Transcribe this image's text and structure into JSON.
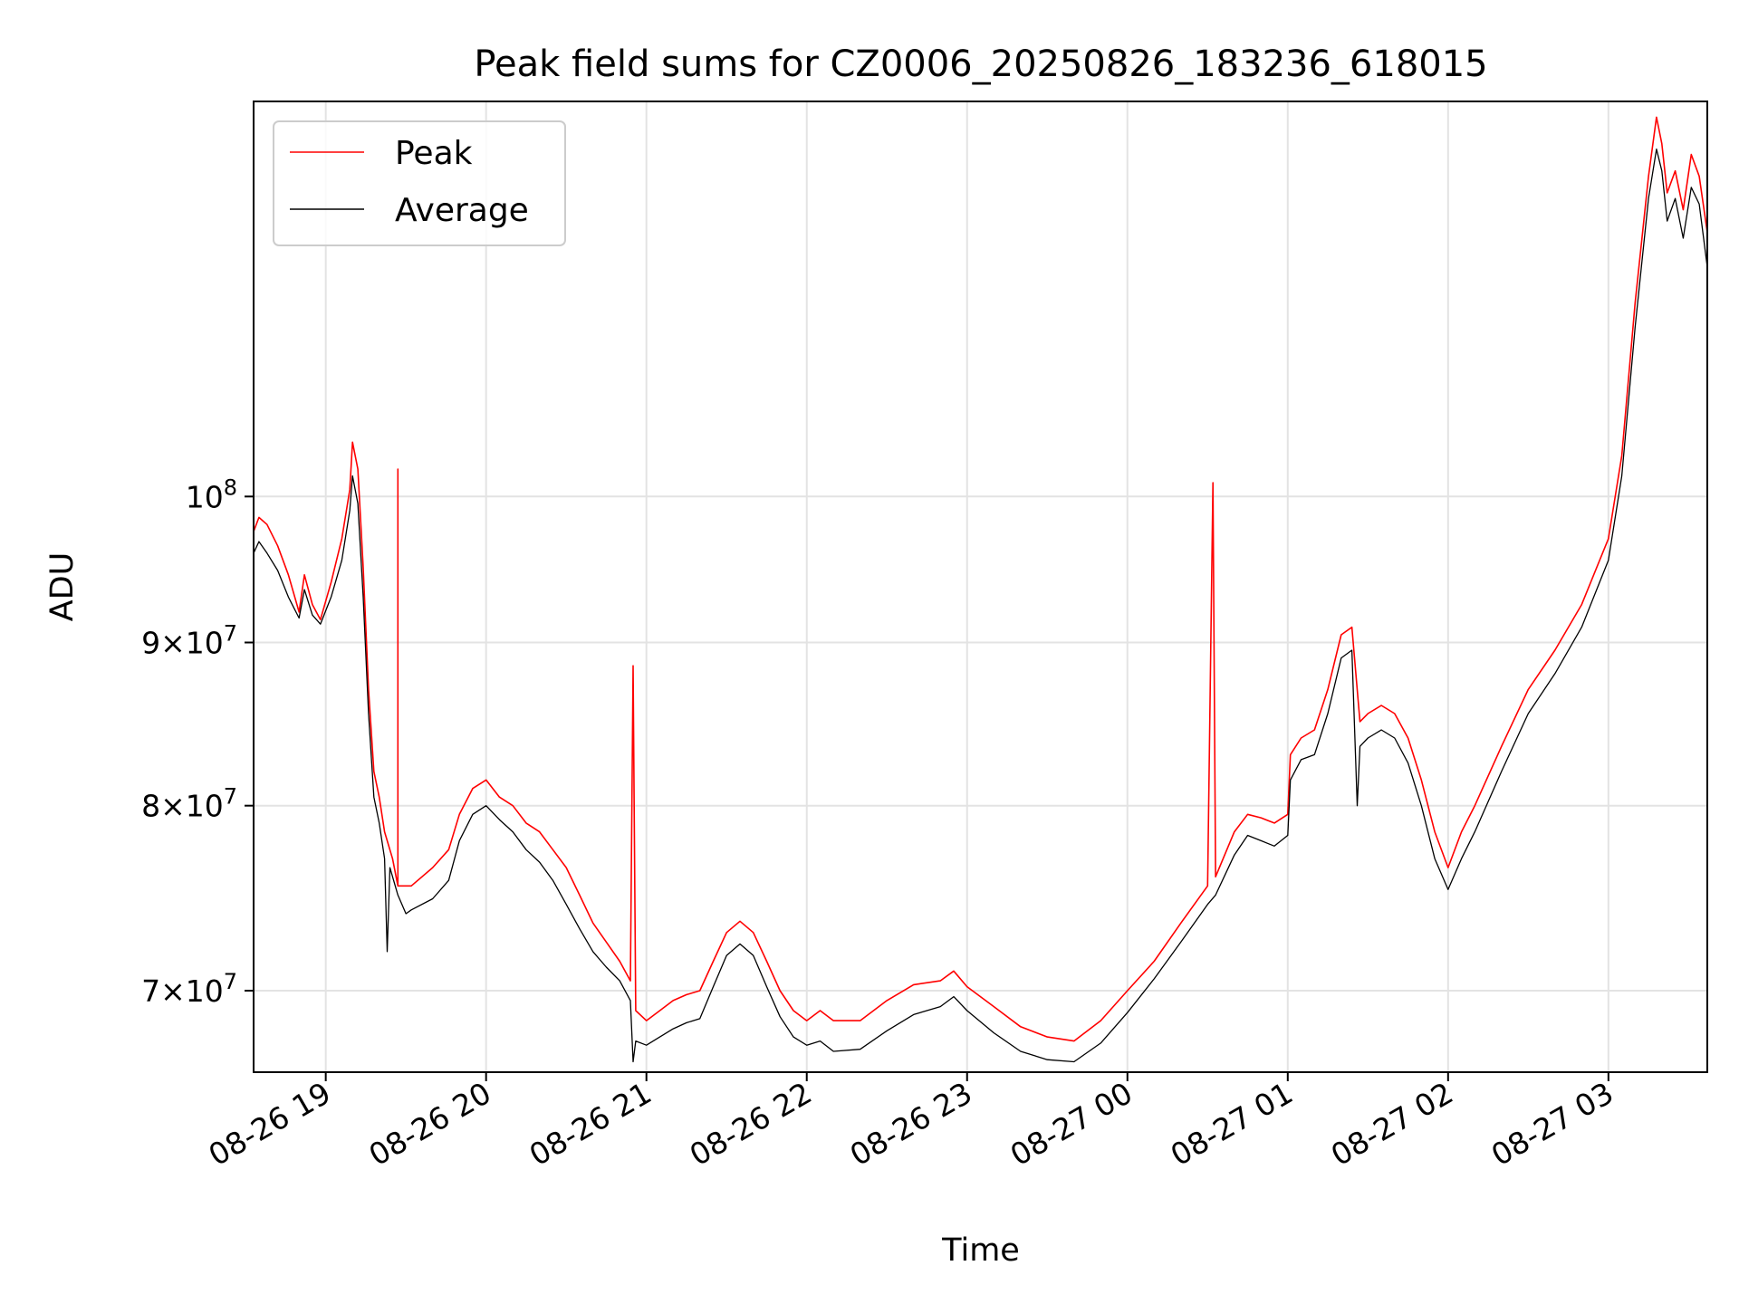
{
  "chart_data": {
    "type": "line",
    "title": "Peak field sums for CZ0006_20250826_183236_618015",
    "xlabel": "Time",
    "ylabel": "ADU",
    "y_scale": "log",
    "xlim": [
      "2025-08-26 18:33",
      "2025-08-27 03:37"
    ],
    "ylim": [
      66000000,
      133000000
    ],
    "grid": true,
    "legend_position": "top-left",
    "x_ticks": [
      {
        "t": "2025-08-26 19:00",
        "label": "08-26 19"
      },
      {
        "t": "2025-08-26 20:00",
        "label": "08-26 20"
      },
      {
        "t": "2025-08-26 21:00",
        "label": "08-26 21"
      },
      {
        "t": "2025-08-26 22:00",
        "label": "08-26 22"
      },
      {
        "t": "2025-08-26 23:00",
        "label": "08-26 23"
      },
      {
        "t": "2025-08-27 00:00",
        "label": "08-27 00"
      },
      {
        "t": "2025-08-27 01:00",
        "label": "08-27 01"
      },
      {
        "t": "2025-08-27 02:00",
        "label": "08-27 02"
      },
      {
        "t": "2025-08-27 03:00",
        "label": "08-27 03"
      }
    ],
    "y_ticks": [
      {
        "value": 70000000,
        "mant": "7",
        "times": "×",
        "base": "10",
        "exp": "7"
      },
      {
        "value": 80000000,
        "mant": "8",
        "times": "×",
        "base": "10",
        "exp": "7"
      },
      {
        "value": 90000000,
        "mant": "9",
        "times": "×",
        "base": "10",
        "exp": "7"
      },
      {
        "value": 100000000,
        "mant": "",
        "times": "",
        "base": "10",
        "exp": "8"
      }
    ],
    "series": [
      {
        "name": "Peak",
        "color": "#ff0000",
        "points": [
          [
            "2025-08-26 18:33",
            97500000
          ],
          [
            "2025-08-26 18:35",
            98500000
          ],
          [
            "2025-08-26 18:38",
            98000000
          ],
          [
            "2025-08-26 18:42",
            96500000
          ],
          [
            "2025-08-26 18:46",
            94500000
          ],
          [
            "2025-08-26 18:50",
            92000000
          ],
          [
            "2025-08-26 18:52",
            94500000
          ],
          [
            "2025-08-26 18:55",
            92500000
          ],
          [
            "2025-08-26 18:58",
            91500000
          ],
          [
            "2025-08-26 19:02",
            94000000
          ],
          [
            "2025-08-26 19:06",
            97000000
          ],
          [
            "2025-08-26 19:09",
            100500000
          ],
          [
            "2025-08-26 19:10",
            104000000
          ],
          [
            "2025-08-26 19:12",
            102000000
          ],
          [
            "2025-08-26 19:14",
            95000000
          ],
          [
            "2025-08-26 19:16",
            87000000
          ],
          [
            "2025-08-26 19:18",
            82000000
          ],
          [
            "2025-08-26 19:20",
            80500000
          ],
          [
            "2025-08-26 19:22",
            78500000
          ],
          [
            "2025-08-26 19:25",
            77000000
          ],
          [
            "2025-08-26 19:27",
            75500000
          ],
          [
            "2025-08-26 19:27",
            102000000
          ],
          [
            "2025-08-26 19:27",
            75500000
          ],
          [
            "2025-08-26 19:32",
            75500000
          ],
          [
            "2025-08-26 19:40",
            76500000
          ],
          [
            "2025-08-26 19:46",
            77500000
          ],
          [
            "2025-08-26 19:50",
            79500000
          ],
          [
            "2025-08-26 19:55",
            81000000
          ],
          [
            "2025-08-26 20:00",
            81500000
          ],
          [
            "2025-08-26 20:05",
            80500000
          ],
          [
            "2025-08-26 20:10",
            80000000
          ],
          [
            "2025-08-26 20:15",
            79000000
          ],
          [
            "2025-08-26 20:20",
            78500000
          ],
          [
            "2025-08-26 20:25",
            77500000
          ],
          [
            "2025-08-26 20:30",
            76500000
          ],
          [
            "2025-08-26 20:35",
            75000000
          ],
          [
            "2025-08-26 20:40",
            73500000
          ],
          [
            "2025-08-26 20:45",
            72500000
          ],
          [
            "2025-08-26 20:50",
            71500000
          ],
          [
            "2025-08-26 20:54",
            70500000
          ],
          [
            "2025-08-26 20:55",
            88500000
          ],
          [
            "2025-08-26 20:56",
            69000000
          ],
          [
            "2025-08-26 21:00",
            68500000
          ],
          [
            "2025-08-26 21:05",
            69000000
          ],
          [
            "2025-08-26 21:10",
            69500000
          ],
          [
            "2025-08-26 21:15",
            69800000
          ],
          [
            "2025-08-26 21:20",
            70000000
          ],
          [
            "2025-08-26 21:25",
            71500000
          ],
          [
            "2025-08-26 21:30",
            73000000
          ],
          [
            "2025-08-26 21:35",
            73600000
          ],
          [
            "2025-08-26 21:40",
            73000000
          ],
          [
            "2025-08-26 21:45",
            71500000
          ],
          [
            "2025-08-26 21:50",
            70000000
          ],
          [
            "2025-08-26 21:55",
            69000000
          ],
          [
            "2025-08-26 22:00",
            68500000
          ],
          [
            "2025-08-26 22:05",
            69000000
          ],
          [
            "2025-08-26 22:10",
            68500000
          ],
          [
            "2025-08-26 22:20",
            68500000
          ],
          [
            "2025-08-26 22:30",
            69500000
          ],
          [
            "2025-08-26 22:40",
            70300000
          ],
          [
            "2025-08-26 22:50",
            70500000
          ],
          [
            "2025-08-26 22:55",
            71000000
          ],
          [
            "2025-08-26 23:00",
            70200000
          ],
          [
            "2025-08-26 23:10",
            69200000
          ],
          [
            "2025-08-26 23:20",
            68200000
          ],
          [
            "2025-08-26 23:30",
            67700000
          ],
          [
            "2025-08-26 23:40",
            67500000
          ],
          [
            "2025-08-26 23:50",
            68500000
          ],
          [
            "2025-08-27 00:00",
            70000000
          ],
          [
            "2025-08-27 00:10",
            71500000
          ],
          [
            "2025-08-27 00:20",
            73500000
          ],
          [
            "2025-08-27 00:30",
            75500000
          ],
          [
            "2025-08-27 00:32",
            101000000
          ],
          [
            "2025-08-27 00:33",
            76000000
          ],
          [
            "2025-08-27 00:40",
            78500000
          ],
          [
            "2025-08-27 00:45",
            79500000
          ],
          [
            "2025-08-27 00:50",
            79300000
          ],
          [
            "2025-08-27 00:55",
            79000000
          ],
          [
            "2025-08-27 01:00",
            79500000
          ],
          [
            "2025-08-27 01:01",
            83000000
          ],
          [
            "2025-08-27 01:05",
            84000000
          ],
          [
            "2025-08-27 01:10",
            84500000
          ],
          [
            "2025-08-27 01:15",
            87000000
          ],
          [
            "2025-08-27 01:20",
            90500000
          ],
          [
            "2025-08-27 01:24",
            91000000
          ],
          [
            "2025-08-27 01:27",
            85000000
          ],
          [
            "2025-08-27 01:30",
            85500000
          ],
          [
            "2025-08-27 01:35",
            86000000
          ],
          [
            "2025-08-27 01:40",
            85500000
          ],
          [
            "2025-08-27 01:45",
            84000000
          ],
          [
            "2025-08-27 01:50",
            81500000
          ],
          [
            "2025-08-27 01:55",
            78500000
          ],
          [
            "2025-08-27 02:00",
            76500000
          ],
          [
            "2025-08-27 02:05",
            78500000
          ],
          [
            "2025-08-27 02:10",
            80000000
          ],
          [
            "2025-08-27 02:20",
            83500000
          ],
          [
            "2025-08-27 02:30",
            87000000
          ],
          [
            "2025-08-27 02:40",
            89500000
          ],
          [
            "2025-08-27 02:50",
            92500000
          ],
          [
            "2025-08-27 03:00",
            97000000
          ],
          [
            "2025-08-27 03:05",
            103000000
          ],
          [
            "2025-08-27 03:10",
            115000000
          ],
          [
            "2025-08-27 03:15",
            126000000
          ],
          [
            "2025-08-27 03:18",
            131500000
          ],
          [
            "2025-08-27 03:20",
            129000000
          ],
          [
            "2025-08-27 03:22",
            124500000
          ],
          [
            "2025-08-27 03:25",
            126500000
          ],
          [
            "2025-08-27 03:28",
            123000000
          ],
          [
            "2025-08-27 03:31",
            128000000
          ],
          [
            "2025-08-27 03:34",
            126000000
          ],
          [
            "2025-08-27 03:37",
            121000000
          ]
        ]
      },
      {
        "name": "Average",
        "color": "#000000",
        "points": [
          [
            "2025-08-26 18:33",
            96000000
          ],
          [
            "2025-08-26 18:35",
            96800000
          ],
          [
            "2025-08-26 18:38",
            96000000
          ],
          [
            "2025-08-26 18:42",
            94800000
          ],
          [
            "2025-08-26 18:46",
            93000000
          ],
          [
            "2025-08-26 18:50",
            91600000
          ],
          [
            "2025-08-26 18:52",
            93500000
          ],
          [
            "2025-08-26 18:55",
            91800000
          ],
          [
            "2025-08-26 18:58",
            91200000
          ],
          [
            "2025-08-26 19:02",
            93000000
          ],
          [
            "2025-08-26 19:06",
            95500000
          ],
          [
            "2025-08-26 19:09",
            99000000
          ],
          [
            "2025-08-26 19:10",
            101500000
          ],
          [
            "2025-08-26 19:12",
            99500000
          ],
          [
            "2025-08-26 19:14",
            93000000
          ],
          [
            "2025-08-26 19:16",
            85500000
          ],
          [
            "2025-08-26 19:18",
            80500000
          ],
          [
            "2025-08-26 19:20",
            79000000
          ],
          [
            "2025-08-26 19:22",
            77000000
          ],
          [
            "2025-08-26 19:23",
            72000000
          ],
          [
            "2025-08-26 19:24",
            76500000
          ],
          [
            "2025-08-26 19:27",
            75000000
          ],
          [
            "2025-08-26 19:30",
            74000000
          ],
          [
            "2025-08-26 19:32",
            74200000
          ],
          [
            "2025-08-26 19:40",
            74800000
          ],
          [
            "2025-08-26 19:46",
            75800000
          ],
          [
            "2025-08-26 19:50",
            78000000
          ],
          [
            "2025-08-26 19:55",
            79500000
          ],
          [
            "2025-08-26 20:00",
            80000000
          ],
          [
            "2025-08-26 20:05",
            79200000
          ],
          [
            "2025-08-26 20:10",
            78500000
          ],
          [
            "2025-08-26 20:15",
            77500000
          ],
          [
            "2025-08-26 20:20",
            76800000
          ],
          [
            "2025-08-26 20:25",
            75800000
          ],
          [
            "2025-08-26 20:30",
            74500000
          ],
          [
            "2025-08-26 20:35",
            73200000
          ],
          [
            "2025-08-26 20:40",
            72000000
          ],
          [
            "2025-08-26 20:45",
            71200000
          ],
          [
            "2025-08-26 20:50",
            70500000
          ],
          [
            "2025-08-26 20:54",
            69500000
          ],
          [
            "2025-08-26 20:55",
            66500000
          ],
          [
            "2025-08-26 20:56",
            67500000
          ],
          [
            "2025-08-26 21:00",
            67300000
          ],
          [
            "2025-08-26 21:05",
            67700000
          ],
          [
            "2025-08-26 21:10",
            68100000
          ],
          [
            "2025-08-26 21:15",
            68400000
          ],
          [
            "2025-08-26 21:20",
            68600000
          ],
          [
            "2025-08-26 21:25",
            70200000
          ],
          [
            "2025-08-26 21:30",
            71800000
          ],
          [
            "2025-08-26 21:35",
            72400000
          ],
          [
            "2025-08-26 21:40",
            71800000
          ],
          [
            "2025-08-26 21:45",
            70200000
          ],
          [
            "2025-08-26 21:50",
            68700000
          ],
          [
            "2025-08-26 21:55",
            67700000
          ],
          [
            "2025-08-26 22:00",
            67300000
          ],
          [
            "2025-08-26 22:05",
            67500000
          ],
          [
            "2025-08-26 22:10",
            67000000
          ],
          [
            "2025-08-26 22:20",
            67100000
          ],
          [
            "2025-08-26 22:30",
            68000000
          ],
          [
            "2025-08-26 22:40",
            68800000
          ],
          [
            "2025-08-26 22:50",
            69200000
          ],
          [
            "2025-08-26 22:55",
            69700000
          ],
          [
            "2025-08-26 23:00",
            69000000
          ],
          [
            "2025-08-26 23:10",
            67900000
          ],
          [
            "2025-08-26 23:20",
            67000000
          ],
          [
            "2025-08-26 23:30",
            66600000
          ],
          [
            "2025-08-26 23:40",
            66500000
          ],
          [
            "2025-08-26 23:50",
            67400000
          ],
          [
            "2025-08-27 00:00",
            68900000
          ],
          [
            "2025-08-27 00:10",
            70600000
          ],
          [
            "2025-08-27 00:20",
            72500000
          ],
          [
            "2025-08-27 00:30",
            74500000
          ],
          [
            "2025-08-27 00:33",
            75000000
          ],
          [
            "2025-08-27 00:40",
            77200000
          ],
          [
            "2025-08-27 00:45",
            78300000
          ],
          [
            "2025-08-27 00:50",
            78000000
          ],
          [
            "2025-08-27 00:55",
            77700000
          ],
          [
            "2025-08-27 01:00",
            78300000
          ],
          [
            "2025-08-27 01:01",
            81500000
          ],
          [
            "2025-08-27 01:05",
            82700000
          ],
          [
            "2025-08-27 01:10",
            83000000
          ],
          [
            "2025-08-27 01:15",
            85500000
          ],
          [
            "2025-08-27 01:20",
            89000000
          ],
          [
            "2025-08-27 01:24",
            89500000
          ],
          [
            "2025-08-27 01:26",
            80000000
          ],
          [
            "2025-08-27 01:27",
            83500000
          ],
          [
            "2025-08-27 01:30",
            84000000
          ],
          [
            "2025-08-27 01:35",
            84500000
          ],
          [
            "2025-08-27 01:40",
            84000000
          ],
          [
            "2025-08-27 01:45",
            82500000
          ],
          [
            "2025-08-27 01:50",
            80000000
          ],
          [
            "2025-08-27 01:55",
            77000000
          ],
          [
            "2025-08-27 02:00",
            75300000
          ],
          [
            "2025-08-27 02:05",
            77000000
          ],
          [
            "2025-08-27 02:10",
            78500000
          ],
          [
            "2025-08-27 02:20",
            82000000
          ],
          [
            "2025-08-27 02:30",
            85500000
          ],
          [
            "2025-08-27 02:40",
            88000000
          ],
          [
            "2025-08-27 02:50",
            91000000
          ],
          [
            "2025-08-27 03:00",
            95500000
          ],
          [
            "2025-08-27 03:05",
            101500000
          ],
          [
            "2025-08-27 03:10",
            113000000
          ],
          [
            "2025-08-27 03:15",
            124000000
          ],
          [
            "2025-08-27 03:18",
            128500000
          ],
          [
            "2025-08-27 03:20",
            126500000
          ],
          [
            "2025-08-27 03:22",
            122000000
          ],
          [
            "2025-08-27 03:25",
            124000000
          ],
          [
            "2025-08-27 03:28",
            120500000
          ],
          [
            "2025-08-27 03:31",
            125000000
          ],
          [
            "2025-08-27 03:34",
            123500000
          ],
          [
            "2025-08-27 03:37",
            118000000
          ]
        ]
      }
    ]
  }
}
